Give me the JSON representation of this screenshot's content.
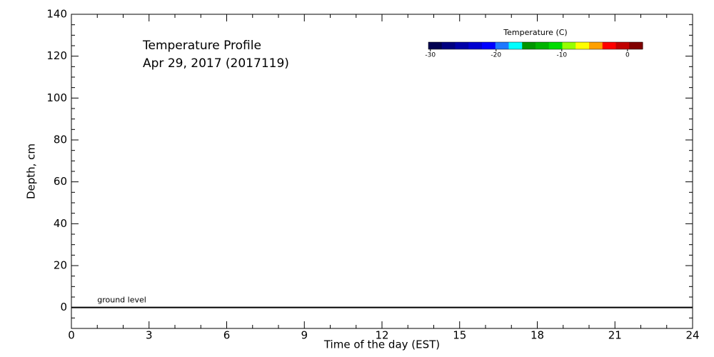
{
  "chart_data": {
    "type": "line",
    "title": "Temperature Profile",
    "subtitle": "Apr 29, 2017 (2017119)",
    "x_label": "Time of the day (EST)",
    "y_label": "Depth, cm",
    "xlim": [
      0,
      24
    ],
    "xticks": [
      0,
      3,
      6,
      9,
      12,
      15,
      18,
      21,
      24
    ],
    "ylim": [
      -10,
      140
    ],
    "yticks": [
      0,
      20,
      40,
      60,
      80,
      100,
      120,
      140
    ],
    "series": [],
    "reference_line": {
      "y": 0,
      "label": "ground level",
      "color": "#000000"
    },
    "colorbar": {
      "label": "Temperature (C)",
      "clim": [
        -30.3,
        2.3
      ],
      "ticks": [
        -30,
        -20,
        -10,
        0
      ],
      "colors": [
        "#000050",
        "#000080",
        "#0000a8",
        "#0000d0",
        "#0000ff",
        "#1e78ff",
        "#00ffff",
        "#009600",
        "#00b400",
        "#00dc00",
        "#96ff00",
        "#ffff00",
        "#ffa000",
        "#ff0000",
        "#c00000",
        "#800000"
      ]
    }
  }
}
